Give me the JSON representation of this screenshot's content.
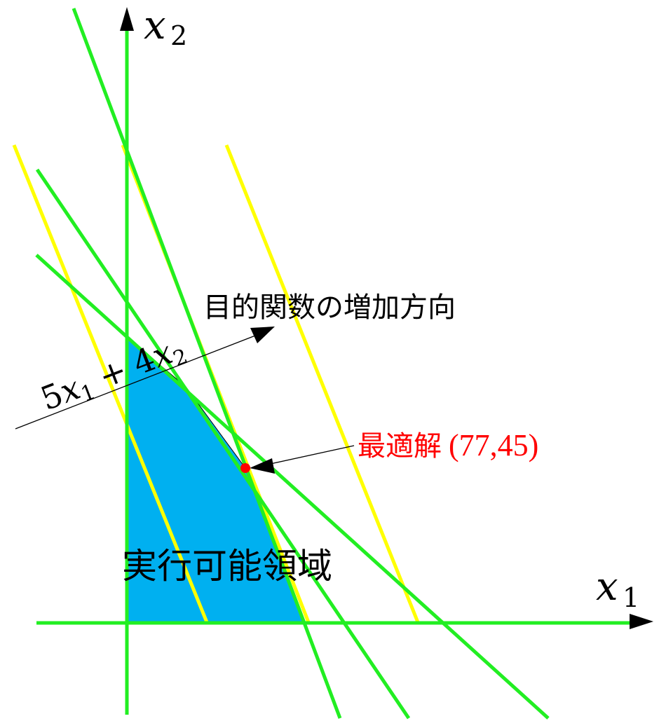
{
  "axes": {
    "x_label": "x",
    "x_subscript": "1",
    "y_label": "x",
    "y_subscript": "2"
  },
  "objective": {
    "coef1": "5",
    "var1": "x",
    "sub1": "1",
    "plus": "+",
    "coef2": "4",
    "var2": "x",
    "sub2": "2",
    "direction_label": "目的関数の増加方向"
  },
  "optimum": {
    "label": "最適解",
    "coords": "(77,45)"
  },
  "region": {
    "label": "実行可能領域"
  },
  "colors": {
    "constraint_line": "#22ee22",
    "objective_line": "#ffff00",
    "feasible_region": "#00b0f0",
    "optimum_point": "#ff0000",
    "optimum_label": "#ff0000",
    "axis": "#000000"
  }
}
